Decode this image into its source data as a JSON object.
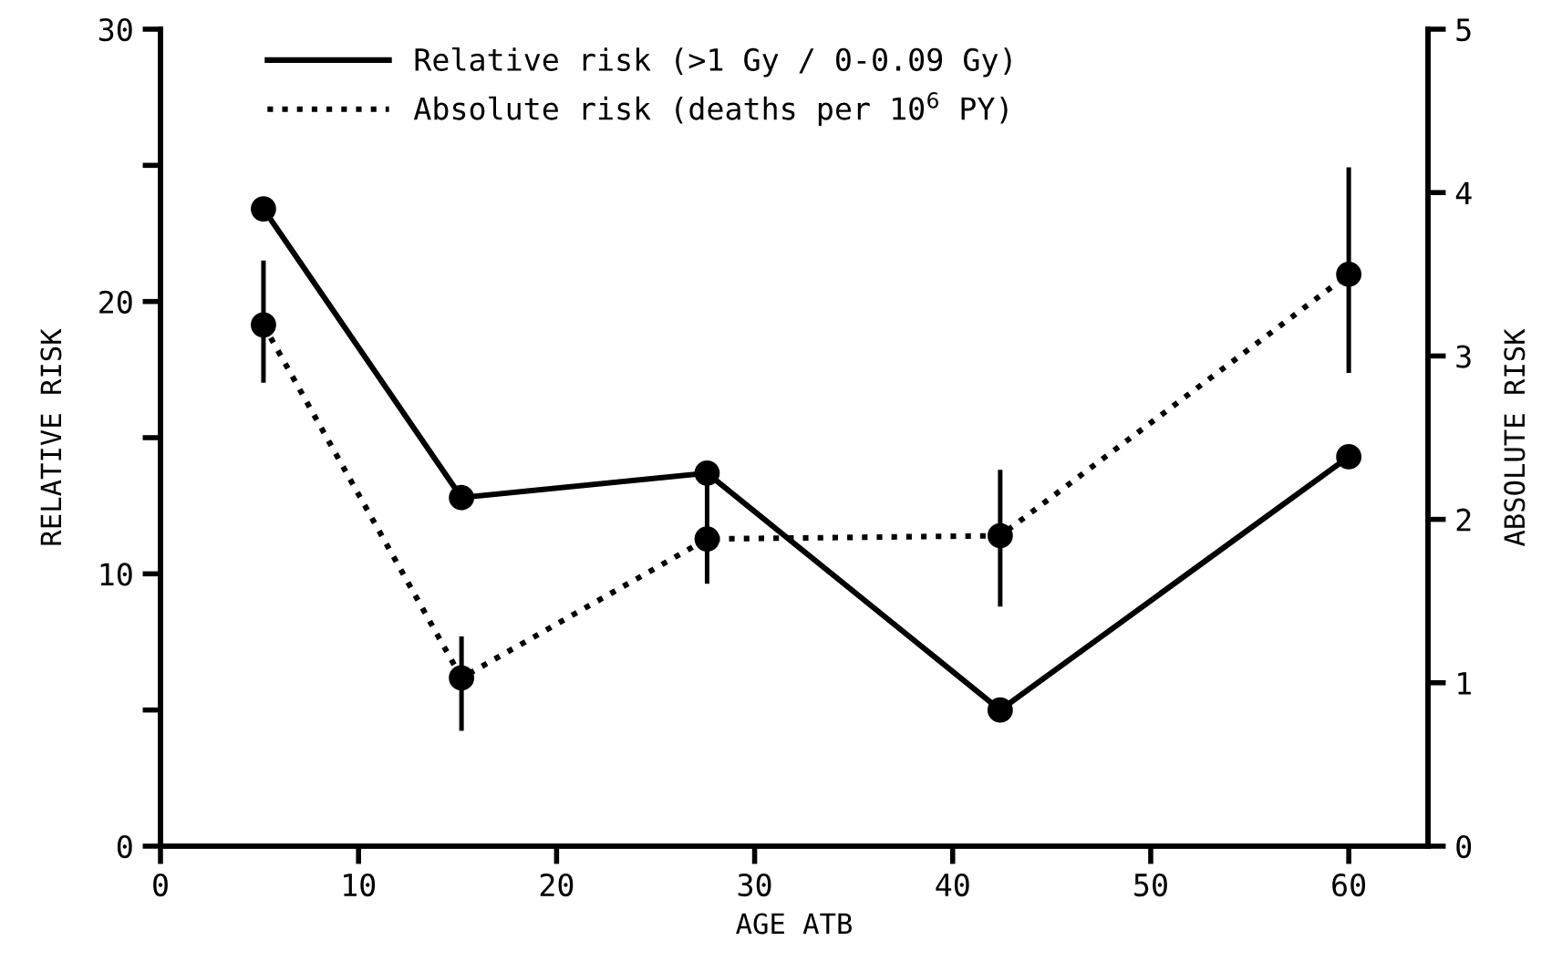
{
  "chart_data": {
    "type": "line",
    "xlabel": "AGE ATB",
    "ylabel": "RELATIVE RISK",
    "y2label": "ABSOLUTE RISK",
    "x": [
      5.2,
      15.2,
      27.6,
      42.4,
      60
    ],
    "series": [
      {
        "name": "Relative risk (>1 Gy / 0-0.09 Gy)",
        "color": "#000000",
        "line_style": "solid",
        "values": [
          23.4,
          12.8,
          13.7,
          5.0,
          14.3
        ]
      },
      {
        "name": "Absolute risk (deaths per 10$^{6}$ PY)",
        "color": "#000000",
        "line_style": "dotted",
        "axis": "y2",
        "values": [
          3.19,
          1.03,
          1.88,
          1.9,
          3.5
        ],
        "errors": [
          [
            2.85,
            3.57
          ],
          [
            0.72,
            1.27
          ],
          [
            1.62,
            2.2
          ],
          [
            1.48,
            2.29
          ],
          [
            2.91,
            4.14
          ]
        ]
      }
    ],
    "xlim": [
      0,
      64
    ],
    "xticks": [
      0,
      10,
      20,
      30,
      40,
      50,
      60
    ],
    "ylim": [
      0,
      30
    ],
    "yticks": [
      0,
      {
        "value": 5,
        "label": null
      },
      10,
      {
        "value": 15,
        "label": null
      },
      20,
      {
        "value": 25,
        "label": null
      },
      30
    ],
    "y2lim": [
      0,
      5
    ],
    "y2ticks": [
      0,
      1,
      2,
      3,
      4,
      5
    ],
    "marker": "circle",
    "grid": false,
    "legend": "top left"
  }
}
